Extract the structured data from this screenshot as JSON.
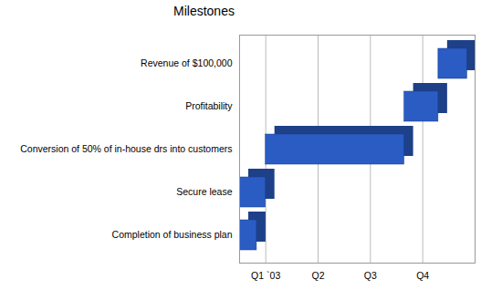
{
  "chart_data": {
    "type": "bar",
    "title": "Milestones",
    "orientation": "horizontal",
    "categories": [
      "Revenue of $100,000",
      "Profitability",
      "Conversion of 50% of in-house drs into customers",
      "Secure lease",
      "Completion of business plan"
    ],
    "start": [
      3.8,
      3.15,
      0.5,
      0,
      0
    ],
    "end": [
      4.35,
      3.8,
      3.15,
      0.5,
      0.33
    ],
    "color": "#2a5cc4",
    "xlim": [
      0,
      4.5
    ],
    "xticks": [
      {
        "value": 0.5,
        "label": "Q1 `03"
      },
      {
        "value": 1.5,
        "label": "Q2"
      },
      {
        "value": 2.5,
        "label": "Q3"
      },
      {
        "value": 3.5,
        "label": "Q4"
      }
    ],
    "grid": true
  }
}
